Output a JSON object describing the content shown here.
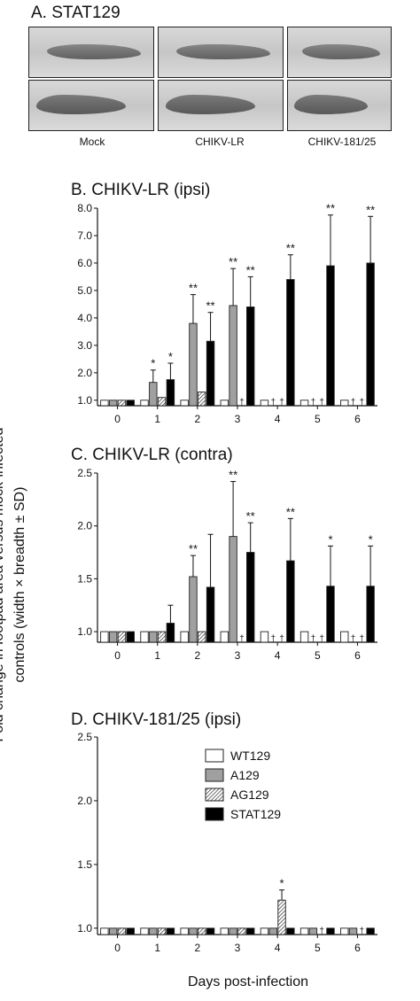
{
  "panel_a": {
    "title": "A. STAT129",
    "labels": [
      "Mock",
      "CHIKV-LR",
      "CHIKV-181/25"
    ]
  },
  "y_axis_label_line1": "Fold change in footpad area versus mock-infected",
  "y_axis_label_line2": "controls (width × breadth ± SD)",
  "x_axis_label": "Days post-infection",
  "legend": [
    {
      "name": "WT129",
      "fill": "#ffffff",
      "pattern": "solid"
    },
    {
      "name": "A129",
      "fill": "#a0a0a0",
      "pattern": "solid"
    },
    {
      "name": "AG129",
      "fill": "#ffffff",
      "pattern": "hatch"
    },
    {
      "name": "STAT129",
      "fill": "#000000",
      "pattern": "solid"
    }
  ],
  "chart_data": [
    {
      "type": "bar",
      "title": "B. CHIKV-LR (ipsi)",
      "categories": [
        "0",
        "1",
        "2",
        "3",
        "4",
        "5",
        "6"
      ],
      "yticks": [
        "1.0",
        "2.0",
        "3.0",
        "4.0",
        "5.0",
        "6.0",
        "7.0",
        "8.0"
      ],
      "ylim": [
        0.8,
        8.0
      ],
      "series": [
        {
          "name": "WT129",
          "values": [
            1.0,
            1.0,
            1.0,
            1.0,
            1.0,
            1.0,
            1.0
          ],
          "err": [
            0,
            0,
            0,
            0,
            0,
            0,
            0
          ]
        },
        {
          "name": "A129",
          "values": [
            1.0,
            1.65,
            3.8,
            4.45,
            null,
            null,
            null
          ],
          "err": [
            0,
            0.45,
            1.05,
            1.35,
            0,
            0,
            0
          ]
        },
        {
          "name": "AG129",
          "values": [
            1.0,
            1.1,
            1.3,
            null,
            null,
            null,
            null
          ],
          "err": [
            0,
            0,
            0,
            0,
            0,
            0,
            0
          ]
        },
        {
          "name": "STAT129",
          "values": [
            1.0,
            1.75,
            3.15,
            4.4,
            5.4,
            5.9,
            6.0
          ],
          "err": [
            0,
            0.6,
            1.05,
            1.1,
            0.9,
            1.85,
            1.7
          ]
        }
      ],
      "annotations": [
        {
          "day": 1,
          "series": "A129",
          "text": "*"
        },
        {
          "day": 1,
          "series": "STAT129",
          "text": "*"
        },
        {
          "day": 2,
          "series": "A129",
          "text": "**"
        },
        {
          "day": 2,
          "series": "STAT129",
          "text": "**"
        },
        {
          "day": 3,
          "series": "A129",
          "text": "**"
        },
        {
          "day": 3,
          "series": "STAT129",
          "text": "**"
        },
        {
          "day": 4,
          "series": "STAT129",
          "text": "**"
        },
        {
          "day": 5,
          "series": "STAT129",
          "text": "**"
        },
        {
          "day": 6,
          "series": "STAT129",
          "text": "**"
        },
        {
          "day": 3,
          "series": "AG129",
          "text": "†"
        },
        {
          "day": 4,
          "series": "A129",
          "text": "†"
        },
        {
          "day": 4,
          "series": "AG129",
          "text": "†"
        },
        {
          "day": 5,
          "series": "A129",
          "text": "†"
        },
        {
          "day": 5,
          "series": "AG129",
          "text": "†"
        },
        {
          "day": 6,
          "series": "A129",
          "text": "†"
        },
        {
          "day": 6,
          "series": "AG129",
          "text": "†"
        }
      ]
    },
    {
      "type": "bar",
      "title": "C. CHIKV-LR (contra)",
      "categories": [
        "0",
        "1",
        "2",
        "3",
        "4",
        "5",
        "6"
      ],
      "yticks": [
        "1.0",
        "1.5",
        "2.0",
        "2.5"
      ],
      "ylim": [
        0.9,
        2.5
      ],
      "series": [
        {
          "name": "WT129",
          "values": [
            1.0,
            1.0,
            1.0,
            1.0,
            1.0,
            1.0,
            1.0
          ],
          "err": [
            0,
            0,
            0,
            0,
            0,
            0,
            0
          ]
        },
        {
          "name": "A129",
          "values": [
            1.0,
            1.0,
            1.52,
            1.9,
            null,
            null,
            null
          ],
          "err": [
            0,
            0,
            0.2,
            0.52,
            0,
            0,
            0
          ]
        },
        {
          "name": "AG129",
          "values": [
            1.0,
            1.0,
            1.0,
            null,
            null,
            null,
            null
          ],
          "err": [
            0,
            0,
            0,
            0,
            0,
            0,
            0
          ]
        },
        {
          "name": "STAT129",
          "values": [
            1.0,
            1.08,
            1.42,
            1.75,
            1.67,
            1.43,
            1.43
          ],
          "err": [
            0,
            0.17,
            0.5,
            0.28,
            0.4,
            0.38,
            0.38
          ]
        }
      ],
      "annotations": [
        {
          "day": 2,
          "series": "A129",
          "text": "**"
        },
        {
          "day": 3,
          "series": "A129",
          "text": "**"
        },
        {
          "day": 3,
          "series": "STAT129",
          "text": "**"
        },
        {
          "day": 4,
          "series": "STAT129",
          "text": "**"
        },
        {
          "day": 5,
          "series": "STAT129",
          "text": "*"
        },
        {
          "day": 6,
          "series": "STAT129",
          "text": "*"
        },
        {
          "day": 3,
          "series": "AG129",
          "text": "†"
        },
        {
          "day": 4,
          "series": "A129",
          "text": "†"
        },
        {
          "day": 4,
          "series": "AG129",
          "text": "†"
        },
        {
          "day": 5,
          "series": "A129",
          "text": "†"
        },
        {
          "day": 5,
          "series": "AG129",
          "text": "†"
        },
        {
          "day": 6,
          "series": "A129",
          "text": "†"
        },
        {
          "day": 6,
          "series": "AG129",
          "text": "†"
        }
      ]
    },
    {
      "type": "bar",
      "title": "D. CHIKV-181/25 (ipsi)",
      "categories": [
        "0",
        "1",
        "2",
        "3",
        "4",
        "5",
        "6"
      ],
      "yticks": [
        "1.0",
        "1.5",
        "2.0",
        "2.5"
      ],
      "ylim": [
        0.95,
        2.5
      ],
      "series": [
        {
          "name": "WT129",
          "values": [
            1.0,
            1.0,
            1.0,
            1.0,
            1.0,
            1.0,
            1.0
          ],
          "err": [
            0,
            0,
            0,
            0,
            0,
            0,
            0
          ]
        },
        {
          "name": "A129",
          "values": [
            1.0,
            1.0,
            1.0,
            1.0,
            1.0,
            1.0,
            1.0
          ],
          "err": [
            0,
            0,
            0,
            0,
            0,
            0,
            0
          ]
        },
        {
          "name": "AG129",
          "values": [
            1.0,
            1.0,
            1.0,
            1.0,
            1.22,
            null,
            null
          ],
          "err": [
            0,
            0,
            0,
            0,
            0.08,
            0,
            0
          ]
        },
        {
          "name": "STAT129",
          "values": [
            1.0,
            1.0,
            1.0,
            1.0,
            1.0,
            1.0,
            1.0
          ],
          "err": [
            0,
            0,
            0,
            0,
            0,
            0,
            0
          ]
        }
      ],
      "annotations": [
        {
          "day": 4,
          "series": "AG129",
          "text": "*"
        },
        {
          "day": 5,
          "series": "AG129",
          "text": "†"
        },
        {
          "day": 6,
          "series": "AG129",
          "text": "†"
        }
      ]
    }
  ]
}
